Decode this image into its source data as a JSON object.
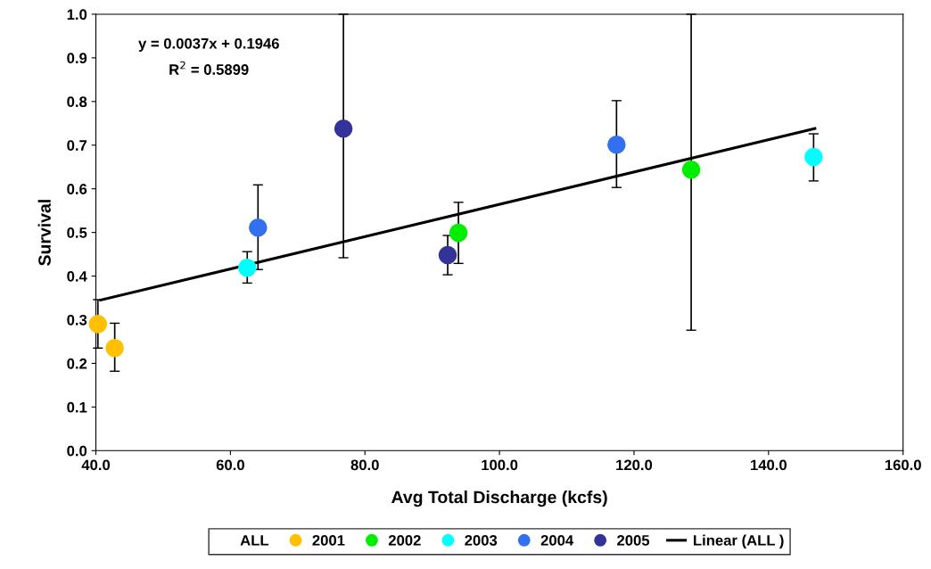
{
  "chart_data": {
    "type": "scatter",
    "xlabel": "Avg Total Discharge (kcfs)",
    "ylabel": "Survival",
    "xlim": [
      40,
      160
    ],
    "ylim": [
      0,
      1
    ],
    "xticks": [
      {
        "value": 40,
        "label": "40.0"
      },
      {
        "value": 60,
        "label": "60.0"
      },
      {
        "value": 80,
        "label": "80.0"
      },
      {
        "value": 100,
        "label": "100.0"
      },
      {
        "value": 120,
        "label": "120.0"
      },
      {
        "value": 140,
        "label": "140.0"
      },
      {
        "value": 160,
        "label": "160.0"
      }
    ],
    "yticks": [
      {
        "value": 0,
        "label": "0.0"
      },
      {
        "value": 0.1,
        "label": "0.1"
      },
      {
        "value": 0.2,
        "label": "0.2"
      },
      {
        "value": 0.3,
        "label": "0.3"
      },
      {
        "value": 0.4,
        "label": "0.4"
      },
      {
        "value": 0.5,
        "label": "0.5"
      },
      {
        "value": 0.6,
        "label": "0.6"
      },
      {
        "value": 0.7,
        "label": "0.7"
      },
      {
        "value": 0.8,
        "label": "0.8"
      },
      {
        "value": 0.9,
        "label": "0.9"
      },
      {
        "value": 1.0,
        "label": "1.0"
      }
    ],
    "grid": false,
    "legend": "bottom",
    "legend_title": "ALL",
    "marker": "circle",
    "annotations": [
      "y = 0.0037x + 0.1946",
      "R$^{2}$ = 0.5899"
    ],
    "series": [
      {
        "name": "2001",
        "color": "#ffc000",
        "x": [
          40.3,
          42.8
        ],
        "values": [
          0.29,
          0.235
        ],
        "errors": [
          [
            0.235,
            0.346
          ],
          [
            0.182,
            0.292
          ]
        ]
      },
      {
        "name": "2002",
        "color": "#00ee00",
        "x": [
          93.9,
          128.5
        ],
        "values": [
          0.499,
          0.644
        ],
        "errors": [
          [
            0.429,
            0.569
          ],
          [
            0.276,
            1.0
          ]
        ]
      },
      {
        "name": "2003",
        "color": "#00ffff",
        "x": [
          62.5,
          146.7
        ],
        "values": [
          0.419,
          0.673
        ],
        "errors": [
          [
            0.384,
            0.456
          ],
          [
            0.618,
            0.726
          ]
        ]
      },
      {
        "name": "2004",
        "color": "#3370f0",
        "x": [
          64.1,
          117.4
        ],
        "values": [
          0.511,
          0.701
        ],
        "errors": [
          [
            0.415,
            0.609
          ],
          [
            0.603,
            0.802
          ]
        ]
      },
      {
        "name": "2005",
        "color": "#333399",
        "x": [
          76.8,
          92.3
        ],
        "values": [
          0.738,
          0.448
        ],
        "errors": [
          [
            0.442,
            1.0
          ],
          [
            0.403,
            0.493
          ]
        ]
      },
      {
        "name": "Linear (ALL )",
        "type": "line",
        "color": "#000000",
        "x": [
          40.7,
          146.9
        ],
        "values": [
          0.345,
          0.738
        ],
        "line_style": "solid",
        "marker": "none"
      }
    ]
  }
}
